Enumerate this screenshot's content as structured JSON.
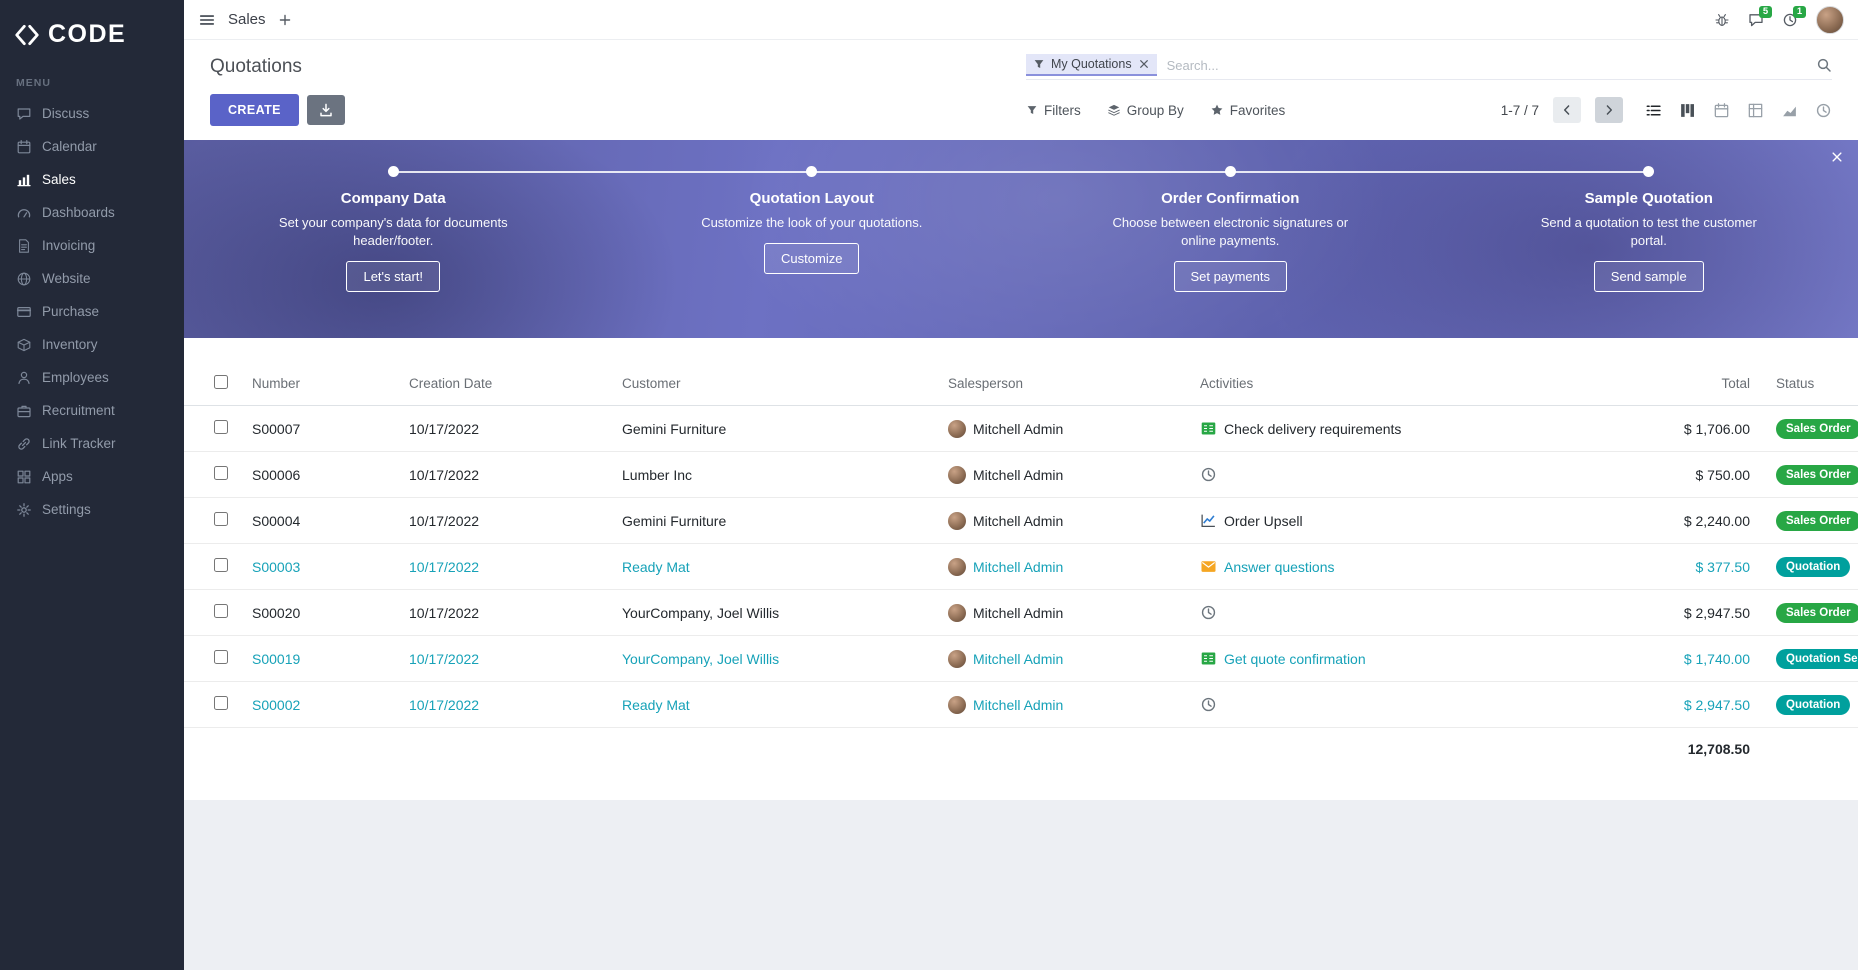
{
  "colors": {
    "accent": "#5a63c8",
    "sidebar_bg": "#232938",
    "badge_sales_order": "#28a745",
    "badge_quotation": "#00a09d",
    "row_highlight_text": "#17a2b8"
  },
  "brand": {
    "logo_text": "CODE",
    "logo_icon": "brand-icon"
  },
  "sidebar": {
    "menu_label": "MENU",
    "items": [
      {
        "label": "Discuss",
        "icon": "discuss-icon"
      },
      {
        "label": "Calendar",
        "icon": "calendar-icon"
      },
      {
        "label": "Sales",
        "icon": "sales-icon",
        "active": true
      },
      {
        "label": "Dashboards",
        "icon": "dashboards-icon"
      },
      {
        "label": "Invoicing",
        "icon": "invoicing-icon"
      },
      {
        "label": "Website",
        "icon": "website-icon"
      },
      {
        "label": "Purchase",
        "icon": "purchase-icon"
      },
      {
        "label": "Inventory",
        "icon": "inventory-icon"
      },
      {
        "label": "Employees",
        "icon": "employees-icon"
      },
      {
        "label": "Recruitment",
        "icon": "recruitment-icon"
      },
      {
        "label": "Link Tracker",
        "icon": "link-icon"
      },
      {
        "label": "Apps",
        "icon": "apps-icon"
      },
      {
        "label": "Settings",
        "icon": "settings-icon"
      }
    ]
  },
  "topbar": {
    "app_title": "Sales",
    "messages_badge": "5",
    "activities_badge": "1"
  },
  "control": {
    "title": "Quotations",
    "create": "CREATE",
    "filters": "Filters",
    "group_by": "Group By",
    "favorites": "Favorites",
    "pager": "1-7 / 7",
    "search_facet": "My Quotations",
    "search_placeholder": "Search...",
    "views": [
      {
        "name": "list",
        "icon": "list-icon"
      },
      {
        "name": "kanban",
        "icon": "kanban-icon"
      },
      {
        "name": "calendar",
        "icon": "calendar-icon"
      },
      {
        "name": "pivot",
        "icon": "pivot-icon"
      },
      {
        "name": "graph",
        "icon": "graph-icon"
      },
      {
        "name": "activity",
        "icon": "clock-icon"
      }
    ]
  },
  "banner": {
    "steps": [
      {
        "title": "Company Data",
        "desc": "Set your company's data for documents header/footer.",
        "button": "Let's start!"
      },
      {
        "title": "Quotation Layout",
        "desc": "Customize the look of your quotations.",
        "button": "Customize"
      },
      {
        "title": "Order Confirmation",
        "desc": "Choose between electronic signatures or online payments.",
        "button": "Set payments"
      },
      {
        "title": "Sample Quotation",
        "desc": "Send a quotation to test the customer portal.",
        "button": "Send sample"
      }
    ]
  },
  "table": {
    "headers": {
      "number": "Number",
      "date": "Creation Date",
      "customer": "Customer",
      "salesperson": "Salesperson",
      "activities": "Activities",
      "total": "Total",
      "status": "Status"
    },
    "rows": [
      {
        "number": "S00007",
        "date": "10/17/2022",
        "customer": "Gemini Furniture",
        "salesperson": "Mitchell Admin",
        "activity": {
          "icon": "tasks-icon",
          "label": "Check delivery requirements"
        },
        "total": "$ 1,706.00",
        "status": "Sales Order",
        "status_type": "order",
        "highlight": false
      },
      {
        "number": "S00006",
        "date": "10/17/2022",
        "customer": "Lumber Inc",
        "salesperson": "Mitchell Admin",
        "activity": {
          "icon": "clock-icon",
          "label": ""
        },
        "total": "$ 750.00",
        "status": "Sales Order",
        "status_type": "order",
        "highlight": false
      },
      {
        "number": "S00004",
        "date": "10/17/2022",
        "customer": "Gemini Furniture",
        "salesperson": "Mitchell Admin",
        "activity": {
          "icon": "chart-icon",
          "label": "Order Upsell"
        },
        "total": "$ 2,240.00",
        "status": "Sales Order",
        "status_type": "order",
        "highlight": false
      },
      {
        "number": "S00003",
        "date": "10/17/2022",
        "customer": "Ready Mat",
        "salesperson": "Mitchell Admin",
        "activity": {
          "icon": "envelope-icon",
          "label": "Answer questions"
        },
        "total": "$ 377.50",
        "status": "Quotation",
        "status_type": "quotation",
        "highlight": true
      },
      {
        "number": "S00020",
        "date": "10/17/2022",
        "customer": "YourCompany, Joel Willis",
        "salesperson": "Mitchell Admin",
        "activity": {
          "icon": "clock-icon",
          "label": ""
        },
        "total": "$ 2,947.50",
        "status": "Sales Order",
        "status_type": "order",
        "highlight": false
      },
      {
        "number": "S00019",
        "date": "10/17/2022",
        "customer": "YourCompany, Joel Willis",
        "salesperson": "Mitchell Admin",
        "activity": {
          "icon": "tasks-icon",
          "label": "Get quote confirmation"
        },
        "total": "$ 1,740.00",
        "status": "Quotation Sent",
        "status_type": "quotation",
        "highlight": true
      },
      {
        "number": "S00002",
        "date": "10/17/2022",
        "customer": "Ready Mat",
        "salesperson": "Mitchell Admin",
        "activity": {
          "icon": "clock-icon",
          "label": ""
        },
        "total": "$ 2,947.50",
        "status": "Quotation",
        "status_type": "quotation",
        "highlight": true
      }
    ],
    "sum_total": "12,708.50"
  }
}
